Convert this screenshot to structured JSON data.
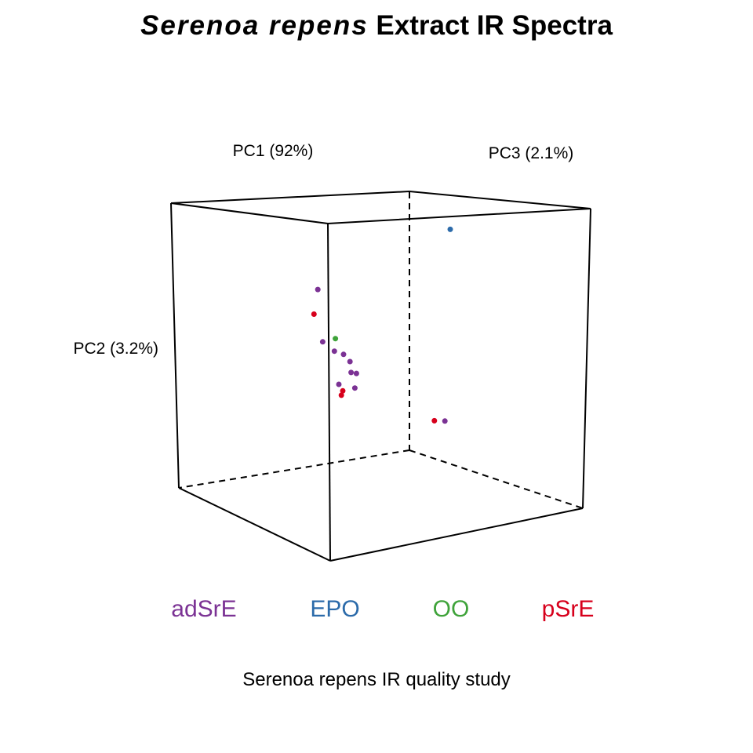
{
  "chart_data": {
    "type": "scatter",
    "title_italic": "Serenoa repens",
    "title_rest": " Extract IR Spectra",
    "subtitle": "Serenoa repens IR quality study",
    "axes": {
      "x": "PC1 (92%)",
      "y": "PC2 (3.2%)",
      "z": "PC3 (2.1%)"
    },
    "groups": [
      {
        "name": "adSrE",
        "color": "#7B3294"
      },
      {
        "name": "EPO",
        "color": "#2C6BAA"
      },
      {
        "name": "OO",
        "color": "#3FA33A"
      },
      {
        "name": "pSrE",
        "color": "#D7001C"
      }
    ],
    "points": [
      {
        "group": "pSrE",
        "pc1": -0.82,
        "pc2": 0.58,
        "pc3": -0.55
      },
      {
        "group": "adSrE",
        "pc1": -0.72,
        "pc2": 0.38,
        "pc3": -0.5
      },
      {
        "group": "adSrE",
        "pc1": -0.57,
        "pc2": 0.3,
        "pc3": -0.4
      },
      {
        "group": "adSrE",
        "pc1": -0.5,
        "pc2": 0.28,
        "pc3": -0.4
      },
      {
        "group": "adSrE",
        "pc1": -0.48,
        "pc2": 0.24,
        "pc3": -0.45
      },
      {
        "group": "adSrE",
        "pc1": -0.4,
        "pc2": 0.15,
        "pc3": -0.4
      },
      {
        "group": "adSrE",
        "pc1": -0.32,
        "pc2": 0.12,
        "pc3": -0.2
      },
      {
        "group": "adSrE",
        "pc1": -0.35,
        "pc2": 0.03,
        "pc3": -0.3
      },
      {
        "group": "adSrE",
        "pc1": -0.1,
        "pc2": 0.55,
        "pc3": 0.6
      },
      {
        "group": "pSrE",
        "pc1": -0.14,
        "pc2": -0.08,
        "pc3": 0.2
      },
      {
        "group": "pSrE",
        "pc1": -0.12,
        "pc2": -0.12,
        "pc3": 0.25
      },
      {
        "group": "adSrE",
        "pc1": -0.02,
        "pc2": -0.08,
        "pc3": 0.45
      },
      {
        "group": "OO",
        "pc1": 0.25,
        "pc2": 0.15,
        "pc3": 0.95
      },
      {
        "group": "pSrE",
        "pc1": 0.5,
        "pc2": -0.25,
        "pc3": 0.1
      },
      {
        "group": "adSrE",
        "pc1": 0.58,
        "pc2": -0.25,
        "pc3": 0.1
      },
      {
        "group": "EPO",
        "pc1": 0.9,
        "pc2": 1.0,
        "pc3": 0.6
      }
    ]
  }
}
